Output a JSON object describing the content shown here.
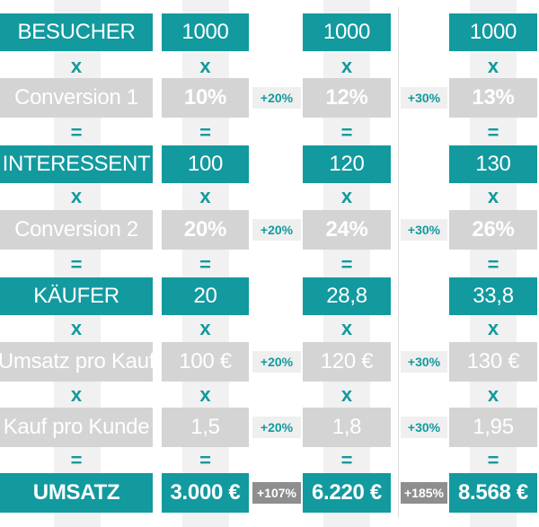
{
  "colors": {
    "teal": "#129a9f",
    "grey": "#d4d4d4",
    "dark_chip": "#8e8e8e",
    "strip": "#f1f1f1"
  },
  "operators": {
    "times": "x",
    "equals": "="
  },
  "labels": {
    "visitors": "BESUCHER",
    "conversion1": "Conversion 1",
    "leads": "INTERESSENT",
    "conversion2": "Conversion 2",
    "buyers": "KÄUFER",
    "revenue_per_purchase": "Umsatz pro Kauf",
    "purchases_per_customer": "Kauf pro Kunde",
    "revenue": "UMSATZ"
  },
  "columns": [
    {
      "visitors": "1000",
      "conversion1": "10%",
      "leads": "100",
      "conversion2": "20%",
      "buyers": "20",
      "revenue_per_purchase": "100 €",
      "purchases_per_customer": "1,5",
      "revenue": "3.000 €"
    },
    {
      "visitors": "1000",
      "conversion1": "12%",
      "leads": "120",
      "conversion2": "24%",
      "buyers": "28,8",
      "revenue_per_purchase": "120 €",
      "purchases_per_customer": "1,8",
      "revenue": "6.220 €"
    },
    {
      "visitors": "1000",
      "conversion1": "13%",
      "leads": "130",
      "conversion2": "26%",
      "buyers": "33,8",
      "revenue_per_purchase": "130 €",
      "purchases_per_customer": "1,95",
      "revenue": "8.568 €"
    }
  ],
  "increases": [
    {
      "conversion1": "+20%",
      "conversion2": "+20%",
      "revenue_per_purchase": "+20%",
      "purchases_per_customer": "+20%",
      "revenue": "+107%"
    },
    {
      "conversion1": "+30%",
      "conversion2": "+30%",
      "revenue_per_purchase": "+30%",
      "purchases_per_customer": "+30%",
      "revenue": "+185%"
    }
  ]
}
